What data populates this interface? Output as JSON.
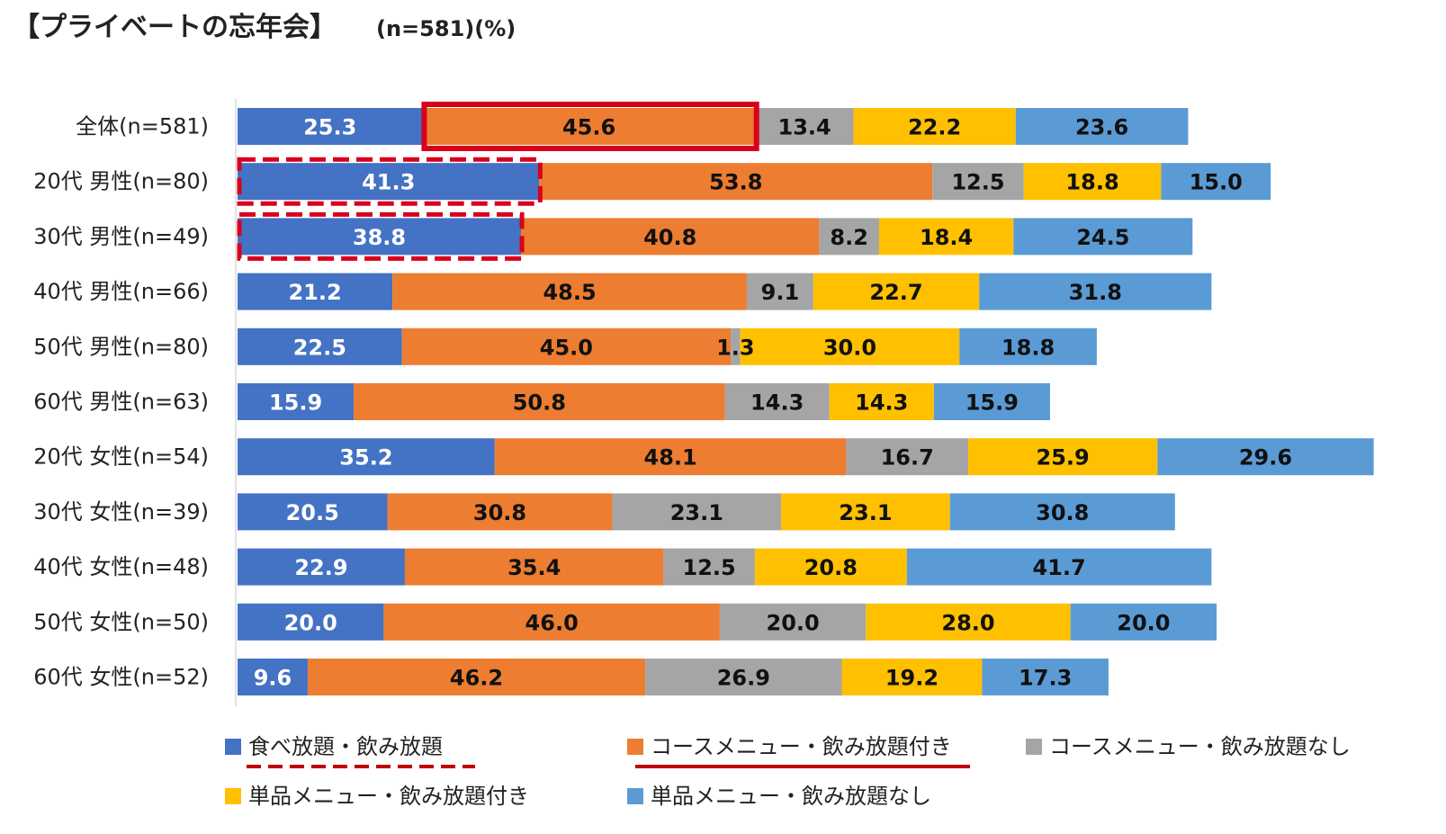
{
  "chart_data": {
    "type": "bar",
    "orientation": "horizontal",
    "stacked": true,
    "title": "【プライベートの忘年会】",
    "subtitle": "(n=581)(%)",
    "categories": [
      "全体(n=581)",
      "20代 男性(n=80)",
      "30代 男性(n=49)",
      "40代 男性(n=66)",
      "50代 男性(n=80)",
      "60代 男性(n=63)",
      "20代 女性(n=54)",
      "30代 女性(n=39)",
      "40代 女性(n=48)",
      "50代 女性(n=50)",
      "60代 女性(n=52)"
    ],
    "series": [
      {
        "name": "食べ放題・飲み放題",
        "color": "#4472C4",
        "label_color": "#ffffff",
        "values": [
          25.3,
          41.3,
          38.8,
          21.2,
          22.5,
          15.9,
          35.2,
          20.5,
          22.9,
          20.0,
          9.6
        ],
        "labels": [
          "25.3",
          "41.3",
          "38.8",
          "21.2",
          "22.5",
          "15.9",
          "35.2",
          "20.5",
          "22.9",
          "20.0",
          "9.6"
        ]
      },
      {
        "name": "コースメニュー・飲み放題付き",
        "color": "#ED7D31",
        "label_color": "#111111",
        "values": [
          45.6,
          53.8,
          40.8,
          48.5,
          45.0,
          50.8,
          48.1,
          30.8,
          35.4,
          46.0,
          46.2
        ],
        "labels": [
          "45.6",
          "53.8",
          "40.8",
          "48.5",
          "45.0",
          "50.8",
          "48.1",
          "30.8",
          "35.4",
          "46.0",
          "46.2"
        ]
      },
      {
        "name": "コースメニュー・飲み放題なし",
        "color": "#A5A5A5",
        "label_color": "#111111",
        "values": [
          13.4,
          12.5,
          8.2,
          9.1,
          1.3,
          14.3,
          16.7,
          23.1,
          12.5,
          20.0,
          26.9
        ],
        "labels": [
          "13.4",
          "12.5",
          "8.2",
          "9.1",
          "1.3",
          "14.3",
          "16.7",
          "23.1",
          "12.5",
          "20.0",
          "26.9"
        ]
      },
      {
        "name": "単品メニュー・飲み放題付き",
        "color": "#FFC000",
        "label_color": "#111111",
        "values": [
          22.2,
          18.8,
          18.4,
          22.7,
          30.0,
          14.3,
          25.9,
          23.1,
          20.8,
          28.0,
          19.2
        ],
        "labels": [
          "22.2",
          "18.8",
          "18.4",
          "22.7",
          "30.0",
          "14.3",
          "25.9",
          "23.1",
          "20.8",
          "28.0",
          "19.2"
        ]
      },
      {
        "name": "単品メニュー・飲み放題なし",
        "color": "#5B9BD5",
        "label_color": "#111111",
        "values": [
          23.6,
          15.0,
          24.5,
          31.8,
          18.8,
          15.9,
          29.6,
          30.8,
          41.7,
          20.0,
          17.3
        ],
        "labels": [
          "23.6",
          "15.0",
          "24.5",
          "31.8",
          "18.8",
          "15.9",
          "29.6",
          "30.8",
          "41.7",
          "20.0",
          "17.3"
        ]
      }
    ],
    "xlim": [
      0,
      155
    ],
    "grid": false,
    "legend_position": "bottom",
    "highlights": [
      {
        "series": 1,
        "category": 0,
        "style": "solid",
        "color": "#D9001B"
      },
      {
        "series": 0,
        "category": 1,
        "style": "dashed",
        "color": "#D9001B"
      },
      {
        "series": 0,
        "category": 2,
        "style": "dashed",
        "color": "#D9001B"
      }
    ],
    "legend_underlines": [
      {
        "series": 0,
        "style": "dashed",
        "color": "#C00000"
      },
      {
        "series": 1,
        "style": "solid",
        "color": "#C00000"
      }
    ]
  }
}
